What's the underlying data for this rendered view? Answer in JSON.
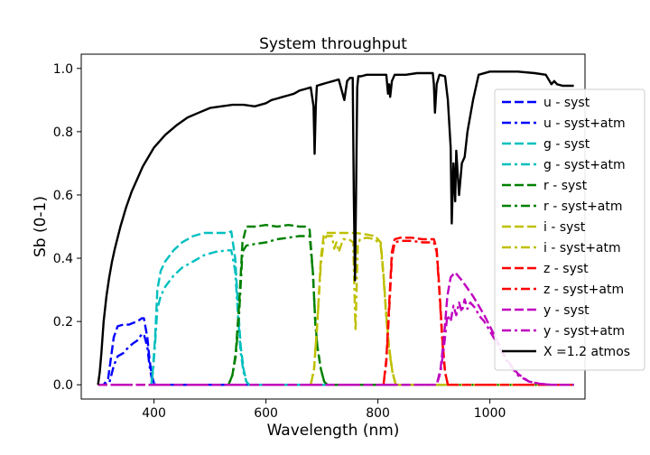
{
  "chart_data": {
    "type": "line",
    "title": "System throughput",
    "xlabel": "Wavelength (nm)",
    "ylabel": "Sb (0-1)",
    "xlim": [
      270,
      1170
    ],
    "ylim": [
      -0.045,
      1.045
    ],
    "xticks": [
      400,
      600,
      800,
      1000
    ],
    "yticks": [
      0.0,
      0.2,
      0.4,
      0.6,
      0.8,
      1.0
    ],
    "xtick_labels": [
      "400",
      "600",
      "800",
      "1000"
    ],
    "ytick_labels": [
      "0.0",
      "0.2",
      "0.4",
      "0.6",
      "0.8",
      "1.0"
    ],
    "grid": false,
    "legend_position": "right",
    "series": [
      {
        "name": "u - syst",
        "color": "#0000ff",
        "dash": "dashed",
        "x": [
          300,
          310,
          318,
          322,
          328,
          335,
          345,
          355,
          362,
          370,
          378,
          382,
          388,
          392,
          396,
          400,
          404,
          1150
        ],
        "y": [
          0,
          0,
          0.02,
          0.07,
          0.15,
          0.185,
          0.19,
          0.19,
          0.195,
          0.2,
          0.21,
          0.21,
          0.15,
          0.08,
          0.03,
          0.005,
          0,
          0
        ]
      },
      {
        "name": "u - syst+atm",
        "color": "#0000ff",
        "dash": "dashdot",
        "x": [
          300,
          310,
          320,
          328,
          335,
          345,
          355,
          362,
          370,
          378,
          382,
          388,
          392,
          396,
          400,
          404,
          1150
        ],
        "y": [
          0,
          0,
          0.005,
          0.06,
          0.09,
          0.1,
          0.12,
          0.13,
          0.14,
          0.16,
          0.16,
          0.12,
          0.06,
          0.02,
          0.003,
          0,
          0
        ]
      },
      {
        "name": "g - syst",
        "color": "#00bfbf",
        "dash": "dashed",
        "x": [
          300,
          395,
          398,
          402,
          406,
          412,
          420,
          435,
          450,
          470,
          490,
          510,
          530,
          538,
          545,
          550,
          555,
          560,
          565,
          570,
          1150
        ],
        "y": [
          0,
          0,
          0.05,
          0.15,
          0.3,
          0.36,
          0.39,
          0.425,
          0.45,
          0.47,
          0.48,
          0.48,
          0.48,
          0.485,
          0.4,
          0.25,
          0.12,
          0.05,
          0.01,
          0,
          0
        ]
      },
      {
        "name": "g - syst+atm",
        "color": "#00bfbf",
        "dash": "dashdot",
        "x": [
          300,
          395,
          398,
          402,
          406,
          412,
          420,
          435,
          450,
          470,
          490,
          510,
          530,
          538,
          545,
          550,
          555,
          560,
          565,
          570,
          1150
        ],
        "y": [
          0,
          0,
          0.04,
          0.13,
          0.24,
          0.28,
          0.31,
          0.345,
          0.37,
          0.39,
          0.41,
          0.42,
          0.425,
          0.425,
          0.36,
          0.22,
          0.1,
          0.04,
          0.01,
          0,
          0
        ]
      },
      {
        "name": "r - syst",
        "color": "#008000",
        "dash": "dashed",
        "x": [
          300,
          533,
          540,
          546,
          552,
          558,
          565,
          580,
          600,
          620,
          640,
          660,
          670,
          678,
          684,
          688,
          692,
          698,
          704,
          710,
          1150
        ],
        "y": [
          0,
          0,
          0.03,
          0.1,
          0.25,
          0.45,
          0.5,
          0.5,
          0.505,
          0.5,
          0.505,
          0.5,
          0.5,
          0.49,
          0.35,
          0.2,
          0.12,
          0.05,
          0.01,
          0,
          0
        ]
      },
      {
        "name": "r - syst+atm",
        "color": "#008000",
        "dash": "dashdot",
        "x": [
          300,
          533,
          540,
          546,
          552,
          558,
          565,
          580,
          600,
          620,
          640,
          660,
          670,
          678,
          684,
          688,
          692,
          698,
          704,
          710,
          1150
        ],
        "y": [
          0,
          0,
          0.03,
          0.09,
          0.22,
          0.42,
          0.44,
          0.445,
          0.45,
          0.46,
          0.465,
          0.47,
          0.47,
          0.47,
          0.35,
          0.2,
          0.12,
          0.05,
          0.01,
          0,
          0
        ]
      },
      {
        "name": "i - syst",
        "color": "#bfbf00",
        "dash": "dashed",
        "x": [
          300,
          680,
          686,
          692,
          698,
          703,
          708,
          730,
          760,
          780,
          795,
          805,
          810,
          815,
          820,
          826,
          832,
          1150
        ],
        "y": [
          0,
          0,
          0.05,
          0.2,
          0.4,
          0.47,
          0.48,
          0.48,
          0.48,
          0.475,
          0.47,
          0.45,
          0.35,
          0.22,
          0.12,
          0.04,
          0,
          0
        ]
      },
      {
        "name": "i - syst+atm",
        "color": "#bfbf00",
        "dash": "dashdot",
        "x": [
          300,
          680,
          686,
          692,
          698,
          703,
          708,
          718,
          722,
          726,
          730,
          738,
          748,
          756,
          758,
          760,
          762,
          764,
          768,
          780,
          795,
          805,
          810,
          815,
          820,
          826,
          832,
          1150
        ],
        "y": [
          0,
          0,
          0.05,
          0.2,
          0.38,
          0.45,
          0.47,
          0.47,
          0.43,
          0.45,
          0.42,
          0.46,
          0.46,
          0.45,
          0.3,
          0.17,
          0.3,
          0.44,
          0.46,
          0.465,
          0.46,
          0.44,
          0.34,
          0.21,
          0.11,
          0.04,
          0,
          0
        ]
      },
      {
        "name": "z - syst",
        "color": "#ff0000",
        "dash": "dashed",
        "x": [
          300,
          810,
          815,
          820,
          825,
          830,
          840,
          860,
          880,
          900,
          905,
          910,
          915,
          920,
          925,
          1150
        ],
        "y": [
          0,
          0,
          0.08,
          0.25,
          0.42,
          0.46,
          0.465,
          0.465,
          0.46,
          0.46,
          0.43,
          0.3,
          0.15,
          0.04,
          0,
          0
        ]
      },
      {
        "name": "z - syst+atm",
        "color": "#ff0000",
        "dash": "dashdot",
        "x": [
          300,
          810,
          815,
          820,
          825,
          830,
          840,
          860,
          880,
          900,
          905,
          910,
          915,
          920,
          925,
          1150
        ],
        "y": [
          0,
          0,
          0.07,
          0.23,
          0.4,
          0.45,
          0.455,
          0.455,
          0.45,
          0.45,
          0.42,
          0.29,
          0.14,
          0.04,
          0,
          0
        ]
      },
      {
        "name": "y - syst",
        "color": "#bf00bf",
        "dash": "dashed",
        "x": [
          300,
          905,
          912,
          918,
          924,
          930,
          938,
          950,
          970,
          990,
          1010,
          1030,
          1050,
          1070,
          1090,
          1110,
          1150
        ],
        "y": [
          0,
          0,
          0.05,
          0.15,
          0.28,
          0.34,
          0.355,
          0.33,
          0.28,
          0.22,
          0.15,
          0.08,
          0.035,
          0.01,
          0.003,
          0,
          0
        ]
      },
      {
        "name": "y - syst+atm",
        "color": "#bf00bf",
        "dash": "dashdot",
        "x": [
          300,
          905,
          912,
          918,
          924,
          930,
          935,
          940,
          945,
          950,
          955,
          960,
          965,
          970,
          975,
          980,
          990,
          1010,
          1030,
          1050,
          1070,
          1090,
          1110,
          1150
        ],
        "y": [
          0,
          0,
          0.04,
          0.12,
          0.22,
          0.2,
          0.25,
          0.22,
          0.26,
          0.23,
          0.27,
          0.24,
          0.26,
          0.25,
          0.24,
          0.22,
          0.2,
          0.14,
          0.075,
          0.03,
          0.01,
          0.003,
          0,
          0
        ]
      },
      {
        "name": "X =1.2 atmos",
        "color": "#000000",
        "dash": "solid",
        "x": [
          300,
          303,
          306,
          310,
          315,
          320,
          325,
          330,
          340,
          350,
          360,
          370,
          380,
          390,
          400,
          420,
          440,
          460,
          480,
          500,
          520,
          540,
          560,
          580,
          600,
          610,
          620,
          630,
          640,
          650,
          660,
          670,
          680,
          685,
          687,
          689,
          691,
          700,
          710,
          720,
          730,
          740,
          745,
          750,
          755,
          757,
          759,
          761,
          763,
          765,
          770,
          780,
          800,
          815,
          818,
          820,
          822,
          825,
          830,
          850,
          870,
          890,
          898,
          900,
          902,
          905,
          910,
          920,
          925,
          930,
          932,
          935,
          938,
          940,
          945,
          950,
          955,
          960,
          965,
          970,
          980,
          1000,
          1020,
          1050,
          1080,
          1100,
          1110,
          1115,
          1120,
          1130,
          1150
        ],
        "y": [
          0.0,
          0.04,
          0.1,
          0.2,
          0.28,
          0.34,
          0.39,
          0.43,
          0.5,
          0.56,
          0.61,
          0.65,
          0.69,
          0.72,
          0.75,
          0.79,
          0.82,
          0.845,
          0.86,
          0.875,
          0.88,
          0.885,
          0.885,
          0.88,
          0.89,
          0.9,
          0.905,
          0.91,
          0.915,
          0.92,
          0.93,
          0.935,
          0.94,
          0.88,
          0.73,
          0.88,
          0.945,
          0.95,
          0.955,
          0.96,
          0.965,
          0.9,
          0.96,
          0.97,
          0.97,
          0.6,
          0.33,
          0.6,
          0.94,
          0.975,
          0.975,
          0.98,
          0.98,
          0.98,
          0.92,
          0.95,
          0.91,
          0.96,
          0.98,
          0.98,
          0.985,
          0.985,
          0.985,
          0.95,
          0.86,
          0.95,
          0.98,
          0.975,
          0.9,
          0.75,
          0.51,
          0.7,
          0.58,
          0.74,
          0.6,
          0.7,
          0.72,
          0.8,
          0.85,
          0.9,
          0.98,
          0.99,
          0.99,
          0.99,
          0.985,
          0.98,
          0.95,
          0.96,
          0.95,
          0.945,
          0.945
        ]
      }
    ]
  }
}
